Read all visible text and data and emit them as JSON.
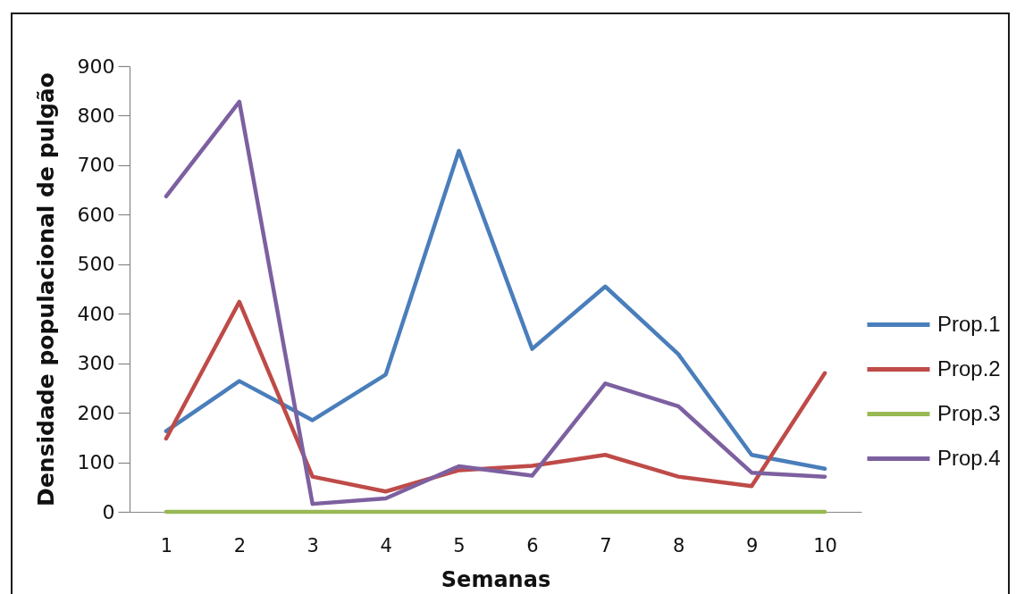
{
  "chart_data": {
    "type": "line",
    "xlabel": "Semanas",
    "ylabel": "Densidade populacional de pulgão",
    "categories": [
      "1",
      "2",
      "3",
      "4",
      "5",
      "6",
      "7",
      "8",
      "9",
      "10"
    ],
    "series": [
      {
        "name": "Prop.1",
        "color": "#4a7ebb",
        "values": [
          163,
          264,
          185,
          277,
          729,
          329,
          455,
          318,
          115,
          87
        ]
      },
      {
        "name": "Prop.2",
        "color": "#be4b48",
        "values": [
          148,
          424,
          71,
          41,
          84,
          93,
          115,
          71,
          52,
          280
        ]
      },
      {
        "name": "Prop.3",
        "color": "#98b954",
        "values": [
          0,
          0,
          0,
          0,
          0,
          0,
          0,
          0,
          0,
          0
        ]
      },
      {
        "name": "Prop.4",
        "color": "#7d60a0",
        "values": [
          637,
          828,
          16,
          27,
          92,
          73,
          259,
          213,
          79,
          71
        ]
      }
    ],
    "ylim": [
      0,
      900
    ],
    "yticks": [
      0,
      100,
      200,
      300,
      400,
      500,
      600,
      700,
      800,
      900
    ],
    "legend": "right",
    "grid": false,
    "marker": "none",
    "line_style": "solid"
  }
}
